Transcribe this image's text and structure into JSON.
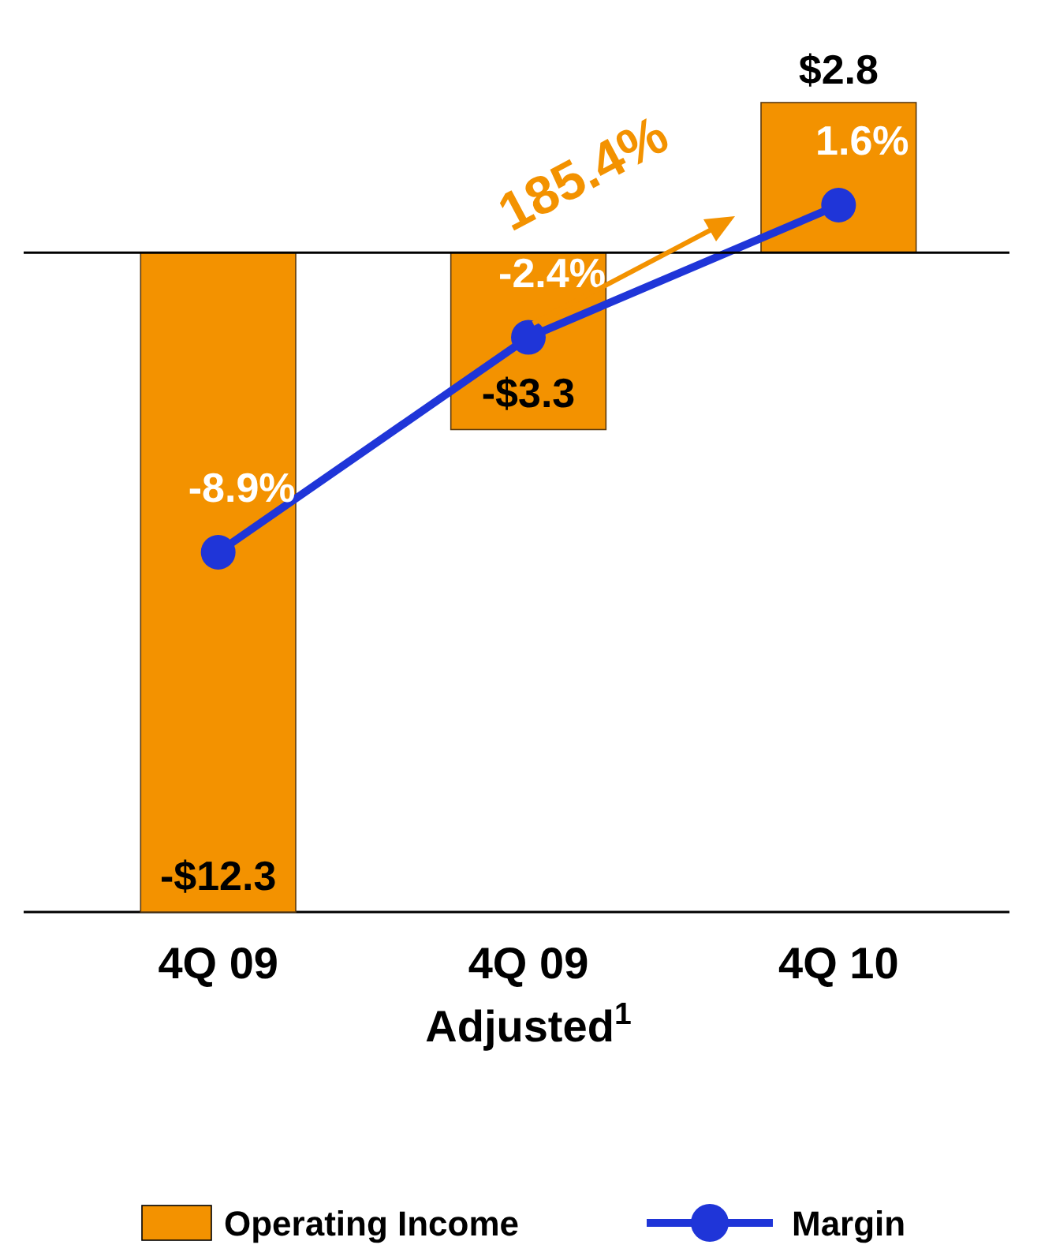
{
  "chart_data": {
    "type": "bar",
    "categories": [
      "4Q 09",
      "4Q 09\nAdjusted$^{1}$",
      "4Q 10"
    ],
    "series": [
      {
        "name": "Operating Income",
        "color": "#f39200",
        "values": [
          -12.3,
          -3.3,
          2.8
        ],
        "value_labels": [
          "-$12.3",
          "-$3.3",
          "$2.8"
        ]
      },
      {
        "name": "Margin",
        "type": "line",
        "axis": "y2",
        "color": "#1f35d8",
        "values": [
          -8.9,
          -2.4,
          1.6
        ],
        "value_labels": [
          "-8.9%",
          "-2.4%",
          "1.6%"
        ],
        "marker": "circle"
      }
    ],
    "annotations": [
      "185.4%"
    ],
    "legend": "bottom"
  }
}
